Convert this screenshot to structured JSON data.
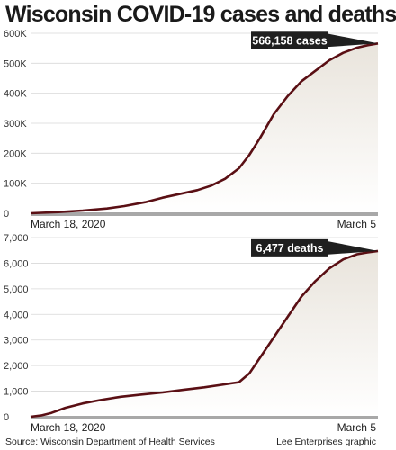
{
  "title": "Wisconsin COVID-19 cases and deaths",
  "source": "Source: Wisconsin Department of Health Services",
  "credit": "Lee Enterprises graphic",
  "colors": {
    "line": "#5a0f14",
    "area_top": "#e9e4dc",
    "area_bottom": "#ffffff",
    "callout": "#1f1f1f",
    "grid": "#d8d8d8",
    "baseline": "#a8a8a8"
  },
  "chart_data": [
    {
      "type": "area",
      "series": [
        {
          "name": "cases",
          "x": [
            0,
            0.03,
            0.08,
            0.15,
            0.22,
            0.27,
            0.33,
            0.38,
            0.44,
            0.48,
            0.52,
            0.56,
            0.6,
            0.63,
            0.66,
            0.7,
            0.74,
            0.78,
            0.82,
            0.86,
            0.9,
            0.94,
            0.97,
            1.0
          ],
          "values": [
            0,
            1500,
            4000,
            9000,
            16000,
            24000,
            37000,
            52000,
            67000,
            77000,
            92000,
            115000,
            150000,
            195000,
            250000,
            330000,
            390000,
            440000,
            475000,
            510000,
            535000,
            552000,
            560000,
            566158
          ]
        }
      ],
      "xlabel_start": "March 18, 2020",
      "xlabel_end": "March 5",
      "yticks": [
        "0",
        "100K",
        "200K",
        "300K",
        "400K",
        "500K",
        "600K"
      ],
      "ylim": [
        0,
        600000
      ],
      "callout": "566,158 cases"
    },
    {
      "type": "area",
      "series": [
        {
          "name": "deaths",
          "x": [
            0,
            0.03,
            0.06,
            0.1,
            0.15,
            0.2,
            0.26,
            0.32,
            0.38,
            0.44,
            0.5,
            0.55,
            0.6,
            0.63,
            0.66,
            0.7,
            0.74,
            0.78,
            0.82,
            0.86,
            0.9,
            0.94,
            0.97,
            1.0
          ],
          "values": [
            0,
            50,
            150,
            350,
            520,
            650,
            780,
            870,
            950,
            1050,
            1150,
            1250,
            1350,
            1700,
            2300,
            3100,
            3900,
            4700,
            5300,
            5800,
            6150,
            6350,
            6420,
            6477
          ]
        }
      ],
      "xlabel_start": "March 18, 2020",
      "xlabel_end": "March 5",
      "yticks": [
        "0",
        "1,000",
        "2,000",
        "3,000",
        "4,000",
        "5,000",
        "6,000",
        "7,000"
      ],
      "ylim": [
        0,
        7000
      ],
      "callout": "6,477 deaths"
    }
  ]
}
